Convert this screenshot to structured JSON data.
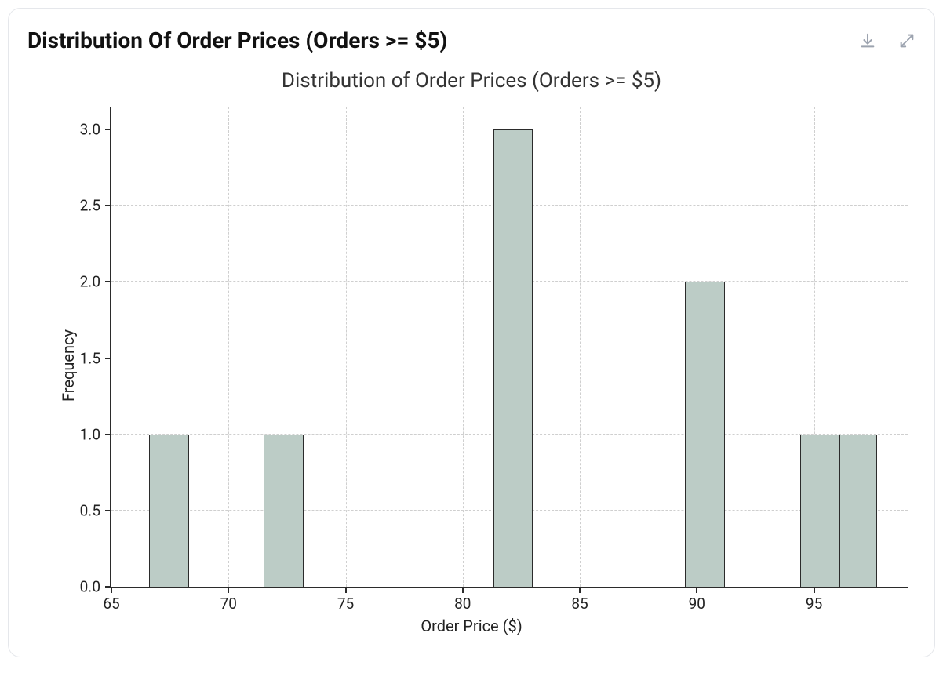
{
  "card": {
    "title": "Distribution Of Order Prices (Orders >= $5)"
  },
  "icons": {
    "download": "download-icon",
    "expand": "expand-icon"
  },
  "chart": {
    "type": "histogram",
    "title": "Distribution of Order Prices (Orders >= $5)",
    "xlabel": "Order Price ($)",
    "ylabel": "Frequency",
    "xlim": [
      65,
      99
    ],
    "ylim": [
      0,
      3.15
    ],
    "xticks": [
      65,
      70,
      75,
      80,
      85,
      90,
      95
    ],
    "yticks": [
      0.0,
      0.5,
      1.0,
      1.5,
      2.0,
      2.5,
      3.0
    ],
    "ytick_labels": [
      "0.0",
      "0.5",
      "1.0",
      "1.5",
      "2.0",
      "2.5",
      "3.0"
    ],
    "xtick_labels": [
      "65",
      "70",
      "75",
      "80",
      "85",
      "90",
      "95"
    ],
    "bars": [
      {
        "x0": 66.6,
        "x1": 68.3,
        "y": 1
      },
      {
        "x0": 71.5,
        "x1": 73.2,
        "y": 1
      },
      {
        "x0": 81.3,
        "x1": 83.0,
        "y": 3
      },
      {
        "x0": 89.5,
        "x1": 91.2,
        "y": 2
      },
      {
        "x0": 94.4,
        "x1": 96.1,
        "y": 1
      },
      {
        "x0": 96.1,
        "x1": 97.7,
        "y": 1
      }
    ],
    "colors": {
      "bar_fill": "#bcccc6",
      "bar_border": "#2b2b2b",
      "axis": "#2b2b2b",
      "grid": "#cfcfcf",
      "background": "#ffffff",
      "text": "#222222"
    },
    "style": {
      "title_fontsize": 26,
      "label_fontsize": 20,
      "tick_fontsize": 19,
      "bar_border_width": 1.5,
      "axis_width": 2,
      "grid_dash": "dashed"
    }
  }
}
